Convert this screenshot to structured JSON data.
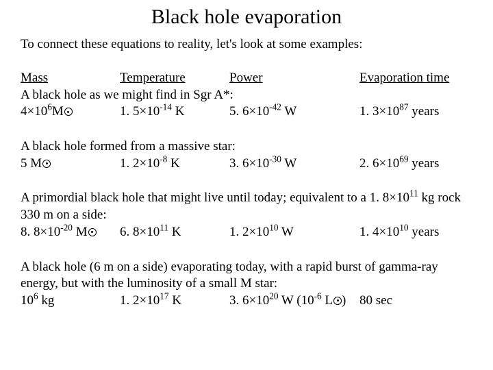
{
  "title": "Black hole evaporation",
  "intro": "To connect these equations to reality, let's look at some examples:",
  "headers": {
    "mass": "Mass",
    "temp": "Temperature",
    "power": "Power",
    "evap": "Evaporation time"
  },
  "ex1": {
    "desc": "A black hole as we might find in Sgr A*:",
    "mass_coef": "4×10",
    "mass_exp": "6",
    "mass_unit": "M",
    "temp_coef": "1. 5×10",
    "temp_exp": "-14",
    "temp_unit": " K",
    "power_coef": "5. 6×10",
    "power_exp": "-42",
    "power_unit": " W",
    "evap_coef": "1. 3×10",
    "evap_exp": "87",
    "evap_unit": " years"
  },
  "ex2": {
    "desc": "A black hole formed from a massive star:",
    "mass_coef": "5 M",
    "temp_coef": "1. 2×10",
    "temp_exp": "-8",
    "temp_unit": " K",
    "power_coef": "3. 6×10",
    "power_exp": "-30",
    "power_unit": " W",
    "evap_coef": "2. 6×10",
    "evap_exp": "69",
    "evap_unit": " years"
  },
  "ex3": {
    "desc_pre": "A primordial black hole that might live until today; equivalent to a 1. 8×10",
    "desc_exp": "11",
    "desc_post": " kg rock 330 m on a side:",
    "mass_coef": "8. 8×10",
    "mass_exp": "-20",
    "mass_unit": " M",
    "temp_coef": "6. 8×10",
    "temp_exp": "11",
    "temp_unit": " K",
    "power_coef": "1. 2×10",
    "power_exp": "10",
    "power_unit": " W",
    "evap_coef": "1. 4×10",
    "evap_exp": "10",
    "evap_unit": " years"
  },
  "ex4": {
    "desc": "A black hole (6 m on a side) evaporating today, with a rapid burst of gamma-ray energy, but with the luminosity of a small M star:",
    "mass_coef": "10",
    "mass_exp": "6",
    "mass_unit": " kg",
    "temp_coef": "1. 2×10",
    "temp_exp": "17",
    "temp_unit": " K",
    "power_coef": "3. 6×10",
    "power_exp": "20",
    "power_mid": " W (10",
    "power_exp2": "-6",
    "power_unit2": " L",
    "power_close": ")",
    "evap": "80 sec"
  }
}
